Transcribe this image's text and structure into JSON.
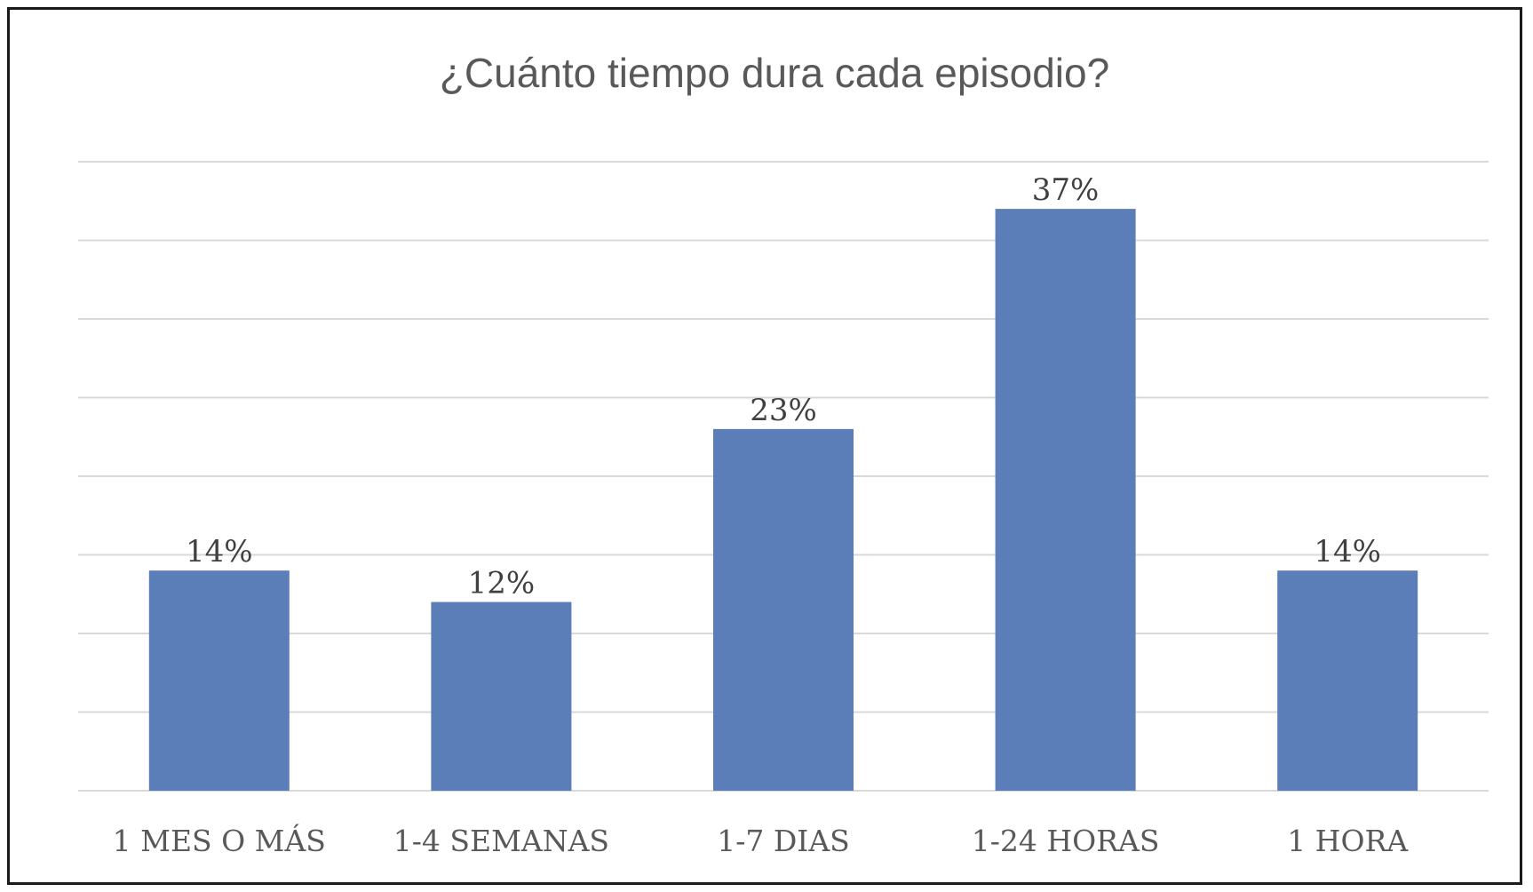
{
  "chart_data": {
    "type": "bar",
    "title": "¿Cuánto tiempo dura cada episodio?",
    "categories": [
      "1 MES O MÁS",
      "1-4 SEMANAS",
      "1-7 DIAS",
      "1-24 HORAS",
      "1 HORA"
    ],
    "values": [
      14,
      12,
      23,
      37,
      14
    ],
    "data_labels": [
      "14%",
      "12%",
      "23%",
      "37%",
      "14%"
    ],
    "xlabel": "",
    "ylabel": "",
    "ylim": [
      0,
      40
    ],
    "y_tick_step": 5,
    "grid": true,
    "legend": "none",
    "bar_color": "#5b7db8"
  }
}
